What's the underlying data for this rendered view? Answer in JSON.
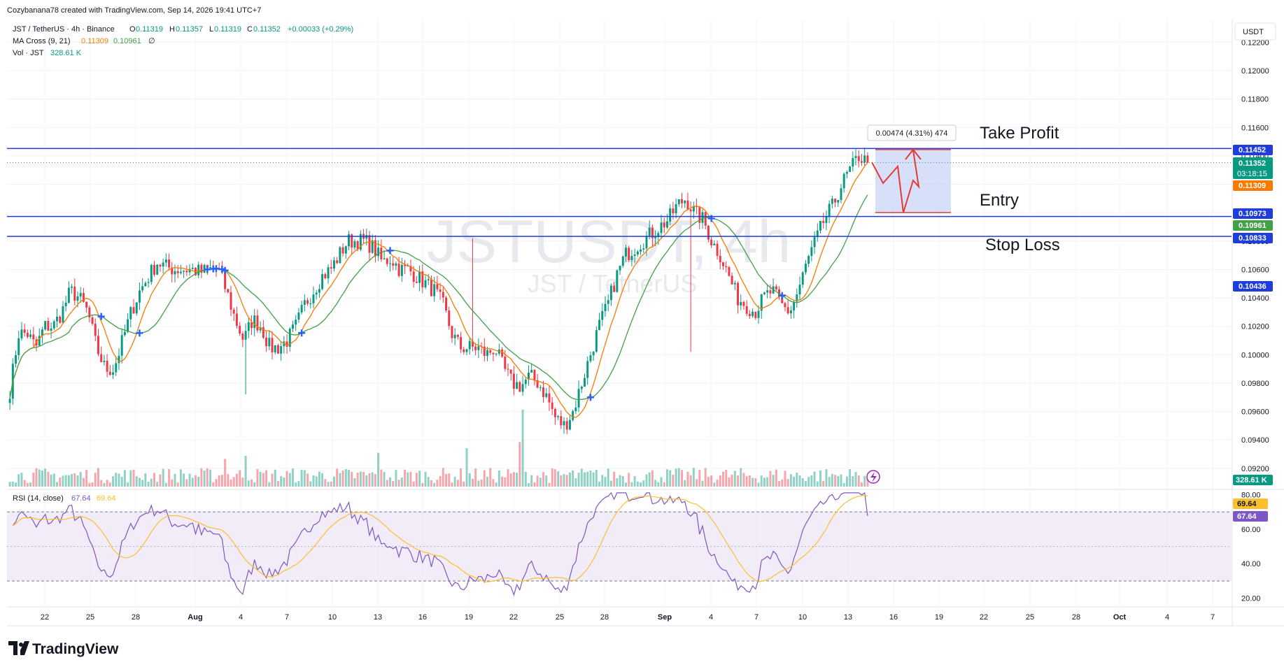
{
  "header": {
    "credit": "Cozybanana78 created with TradingView.com, Sep 14, 2026 19:41 UTC+7",
    "symbol_line": "JST / TetherUS · 4h · Binance",
    "ohlc": {
      "o_label": "O",
      "o": "0.11319",
      "h_label": "H",
      "h": "0.11357",
      "l_label": "L",
      "l": "0.11319",
      "c_label": "C",
      "c": "0.11352",
      "change": "+0.00033 (+0.29%)"
    },
    "ma_line": {
      "label": "MA Cross (9, 21)",
      "v1": "0.11309",
      "v2": "0.10961",
      "extra": "∅"
    },
    "vol_line": {
      "label": "Vol · JST",
      "value": "328.61 K"
    }
  },
  "watermark": {
    "ticker": "JSTUSDT, 4h",
    "name": "JST / TetherUS"
  },
  "currency": "USDT",
  "price_axis": {
    "ticks": [
      "0.12200",
      "0.12000",
      "0.11800",
      "0.11600",
      "0.11400",
      "0.11200",
      "0.11000",
      "0.10800",
      "0.10600",
      "0.10400",
      "0.10200",
      "0.10000",
      "0.09800",
      "0.09600",
      "0.09400",
      "0.09200"
    ],
    "badges": {
      "take_profit": "0.11452",
      "last_price": "0.11352",
      "countdown": "03:18:15",
      "ma_fast": "0.11309",
      "entry": "0.10973",
      "ma_slow": "0.10961",
      "stop_loss": "0.10833",
      "level": "0.10436",
      "volume": "328.61 K"
    }
  },
  "annotations": {
    "take_profit": "Take Profit",
    "entry": "Entry",
    "stop_loss": "Stop Loss",
    "measure": "0.00474 (4.31%) 474"
  },
  "rsi": {
    "label": "RSI (14, close)",
    "value": "67.64",
    "ma_value": "69.64",
    "ticks": [
      "80.00",
      "60.00",
      "40.00",
      "20.00"
    ],
    "badge_value": "67.64",
    "badge_ma": "69.64"
  },
  "time_axis": {
    "ticks": [
      "22",
      "25",
      "28",
      "Aug",
      "4",
      "7",
      "10",
      "13",
      "16",
      "19",
      "22",
      "25",
      "28",
      "Sep",
      "4",
      "7",
      "10",
      "13",
      "16",
      "19",
      "22",
      "25",
      "28",
      "Oct",
      "4",
      "7"
    ]
  },
  "logo": "TradingView",
  "colors": {
    "up": "#089981",
    "down": "#f23645",
    "ma_fast": "#f57c00",
    "ma_slow": "#43a047",
    "level": "#1e3ddb",
    "rsi": "#7e57c2",
    "rsi_ma": "#fbc02d",
    "rsi_band": "#ede7f6",
    "position": "#c9d6f5",
    "arrow": "#e53935"
  },
  "chart_data": {
    "type": "candlestick",
    "timeframe": "4h",
    "y_range": [
      0.0915,
      0.1232
    ],
    "rsi_range": [
      15,
      83
    ],
    "levels": {
      "take_profit": 0.11452,
      "entry": 0.10973,
      "stop_loss": 0.10833,
      "last": 0.11352
    },
    "anchors": [
      [
        0.0982,
        0.0975
      ],
      [
        0.1025,
        0.1015
      ],
      [
        0.102,
        0.1015
      ],
      [
        0.103,
        0.1005
      ],
      [
        0.1025,
        0.102
      ],
      [
        0.1045,
        0.102
      ],
      [
        0.106,
        0.103
      ],
      [
        0.105,
        0.1045
      ],
      [
        0.1035,
        0.104
      ],
      [
        0.101,
        0.103
      ],
      [
        0.1,
        0.1005
      ],
      [
        0.0985,
        0.099
      ],
      [
        0.1005,
        0.099
      ],
      [
        0.103,
        0.101
      ],
      [
        0.1045,
        0.103
      ],
      [
        0.1055,
        0.1045
      ],
      [
        0.107,
        0.1055
      ],
      [
        0.106,
        0.1065
      ],
      [
        0.1058,
        0.1062
      ],
      [
        0.1065,
        0.106
      ],
      [
        0.1055,
        0.106
      ],
      [
        0.1055,
        0.106
      ],
      [
        0.1062,
        0.1058
      ],
      [
        0.1058,
        0.106
      ],
      [
        0.103,
        0.106
      ],
      [
        0.101,
        0.1045
      ],
      [
        0.1015,
        0.1025
      ],
      [
        0.1035,
        0.101
      ],
      [
        0.102,
        0.1025
      ],
      [
        0.1005,
        0.102
      ],
      [
        0.0995,
        0.1005
      ],
      [
        0.1005,
        0.1005
      ],
      [
        0.102,
        0.101
      ],
      [
        0.104,
        0.102
      ],
      [
        0.105,
        0.1035
      ],
      [
        0.106,
        0.1045
      ],
      [
        0.1068,
        0.1055
      ],
      [
        0.1072,
        0.106
      ],
      [
        0.1085,
        0.107
      ],
      [
        0.109,
        0.108
      ],
      [
        0.1085,
        0.108
      ],
      [
        0.1075,
        0.108
      ],
      [
        0.1065,
        0.1075
      ],
      [
        0.107,
        0.1065
      ],
      [
        0.106,
        0.1068
      ],
      [
        0.1065,
        0.106
      ],
      [
        0.1055,
        0.106
      ],
      [
        0.105,
        0.1055
      ],
      [
        0.1045,
        0.105
      ],
      [
        0.103,
        0.1045
      ],
      [
        0.102,
        0.1035
      ],
      [
        0.1005,
        0.1015
      ],
      [
        0.1,
        0.1005
      ],
      [
        0.1005,
        0.1005
      ],
      [
        0.1,
        0.1005
      ],
      [
        0.1005,
        0.1
      ],
      [
        0.0995,
        0.1005
      ],
      [
        0.098,
        0.099
      ],
      [
        0.0975,
        0.098
      ],
      [
        0.0985,
        0.0978
      ],
      [
        0.098,
        0.0985
      ],
      [
        0.097,
        0.098
      ],
      [
        0.0955,
        0.097
      ],
      [
        0.095,
        0.0955
      ],
      [
        0.096,
        0.095
      ],
      [
        0.098,
        0.096
      ],
      [
        0.1,
        0.098
      ],
      [
        0.102,
        0.1
      ],
      [
        0.104,
        0.102
      ],
      [
        0.106,
        0.1035
      ],
      [
        0.1075,
        0.1055
      ],
      [
        0.108,
        0.107
      ],
      [
        0.1085,
        0.1075
      ],
      [
        0.109,
        0.108
      ],
      [
        0.1095,
        0.1085
      ],
      [
        0.11,
        0.109
      ],
      [
        0.111,
        0.1095
      ],
      [
        0.112,
        0.1105
      ],
      [
        0.111,
        0.111
      ],
      [
        0.109,
        0.11
      ],
      [
        0.108,
        0.1095
      ],
      [
        0.1075,
        0.108
      ],
      [
        0.1055,
        0.107
      ],
      [
        0.1045,
        0.1055
      ],
      [
        0.1035,
        0.104
      ],
      [
        0.103,
        0.1035
      ],
      [
        0.104,
        0.103
      ],
      [
        0.1045,
        0.104
      ],
      [
        0.1035,
        0.1045
      ],
      [
        0.103,
        0.1035
      ],
      [
        0.1045,
        0.103
      ],
      [
        0.107,
        0.1045
      ],
      [
        0.1085,
        0.1065
      ],
      [
        0.11,
        0.108
      ],
      [
        0.111,
        0.1095
      ],
      [
        0.1125,
        0.1105
      ],
      [
        0.1135,
        0.112
      ],
      [
        0.1145,
        0.113
      ],
      [
        0.114,
        0.114
      ],
      [
        0.1135,
        0.1135
      ]
    ],
    "volume": {
      "y_max": 100,
      "spikes": {
        "0.592": 58,
        "0.596": 100,
        "0.427": 44,
        "0.531": 50,
        "0.25": 36,
        "0.275": 40
      }
    }
  }
}
